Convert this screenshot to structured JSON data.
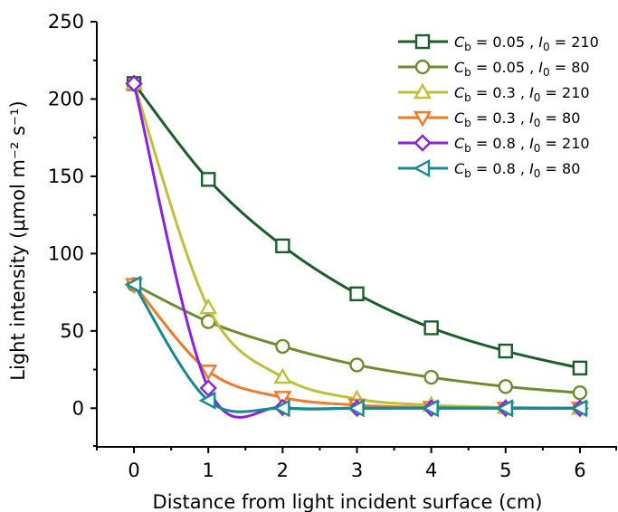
{
  "chart_data": {
    "type": "line",
    "title": "",
    "xlabel": "Distance from light incident surface (cm)",
    "ylabel": "Light intensity (μmol m⁻² s⁻¹)",
    "xlim": [
      -0.5,
      6.5
    ],
    "ylim": [
      -25,
      250
    ],
    "x_ticks": [
      0,
      1,
      2,
      3,
      4,
      5,
      6
    ],
    "y_ticks": [
      0,
      50,
      100,
      150,
      200,
      250
    ],
    "x_tick_labels": [
      "0",
      "1",
      "2",
      "3",
      "4",
      "5",
      "6"
    ],
    "y_tick_labels": [
      "0",
      "50",
      "100",
      "150",
      "200",
      "250"
    ],
    "grid": false,
    "legend_position": "top-right",
    "x": [
      0,
      1,
      2,
      3,
      4,
      5,
      6
    ],
    "series": [
      {
        "name": "Cb = 0.05 , I0 = 210",
        "legend": {
          "c_sym": "C",
          "c_sub": "b",
          "c_val": " = 0.05 , ",
          "i_sym": "I",
          "i_sub": "0",
          "i_val": " = 210"
        },
        "marker": "square",
        "color": "#1c5e2a",
        "values": [
          210,
          148,
          105,
          74,
          52,
          37,
          26
        ]
      },
      {
        "name": "Cb = 0.05 , I0 = 80",
        "legend": {
          "c_sym": "C",
          "c_sub": "b",
          "c_val": " = 0.05 , ",
          "i_sym": "I",
          "i_sub": "0",
          "i_val": " = 80"
        },
        "marker": "circle",
        "color": "#6f8c2d",
        "values": [
          80,
          56,
          40,
          28,
          20,
          14,
          10
        ]
      },
      {
        "name": "Cb = 0.3 , I0 = 210",
        "legend": {
          "c_sym": "C",
          "c_sub": "b",
          "c_val": " = 0.3 , ",
          "i_sym": "I",
          "i_sub": "0",
          "i_val": " = 210"
        },
        "marker": "triangle-up",
        "color": "#bfbf3a",
        "values": [
          210,
          65,
          20,
          6,
          2,
          0.5,
          0
        ]
      },
      {
        "name": "Cb = 0.3 , I0 = 80",
        "legend": {
          "c_sym": "C",
          "c_sub": "b",
          "c_val": " = 0.3 , ",
          "i_sym": "I",
          "i_sub": "0",
          "i_val": " = 80"
        },
        "marker": "triangle-down",
        "color": "#f07a2a",
        "values": [
          80,
          24,
          7,
          2,
          0.5,
          0,
          0
        ]
      },
      {
        "name": "Cb = 0.8 , I0 = 210",
        "legend": {
          "c_sym": "C",
          "c_sub": "b",
          "c_val": " = 0.8 , ",
          "i_sym": "I",
          "i_sub": "0",
          "i_val": " = 210"
        },
        "marker": "diamond",
        "color": "#8b20e0",
        "values": [
          210,
          13,
          0.5,
          0,
          0,
          0,
          0
        ]
      },
      {
        "name": "Cb = 0.8 , I0 = 80",
        "legend": {
          "c_sym": "C",
          "c_sub": "b",
          "c_val": " = 0.8 , ",
          "i_sym": "I",
          "i_sub": "0",
          "i_val": " = 80"
        },
        "marker": "triangle-left",
        "color": "#178a8f",
        "values": [
          80,
          5,
          0,
          0,
          0,
          0,
          0
        ]
      }
    ]
  }
}
